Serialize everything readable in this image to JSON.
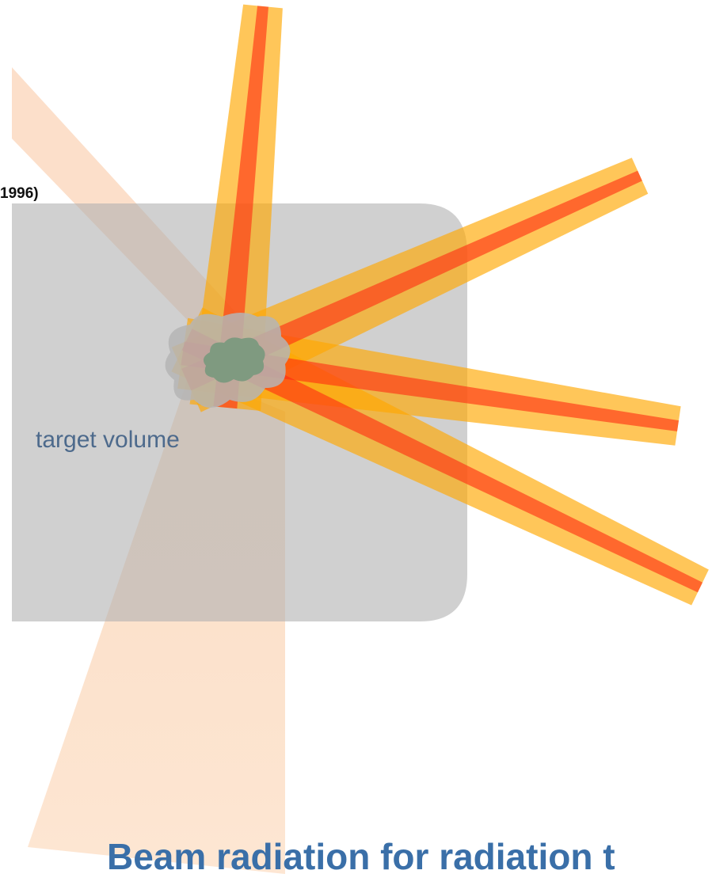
{
  "citation": "1996)",
  "target_label": "target volume",
  "caption": "Beam radiation for radiation t"
}
